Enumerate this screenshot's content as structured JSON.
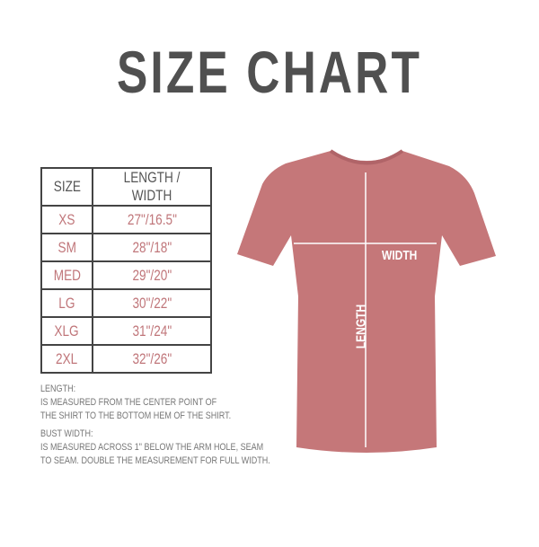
{
  "title": "SIZE CHART",
  "table": {
    "headers": [
      "SIZE",
      "LENGTH / WIDTH"
    ],
    "rows": [
      {
        "size": "XS",
        "measure": "27\"/16.5\""
      },
      {
        "size": "SM",
        "measure": "28\"/18\""
      },
      {
        "size": "MED",
        "measure": "29\"/20\""
      },
      {
        "size": "LG",
        "measure": "30\"/22\""
      },
      {
        "size": "XLG",
        "measure": "31\"/24\""
      },
      {
        "size": "2XL",
        "measure": "32\"/26\""
      }
    ]
  },
  "notes": {
    "length_heading": "LENGTH:",
    "length_line1": "IS MEASURED FROM THE CENTER POINT OF",
    "length_line2": "THE SHIRT TO THE BOTTOM HEM OF THE SHIRT.",
    "width_heading": "BUST WIDTH:",
    "width_line1": "IS MEASURED ACROSS  1\" BELOW THE ARM HOLE, SEAM",
    "width_line2": "TO SEAM. DOUBLE THE MEASUREMENT FOR FULL WIDTH."
  },
  "shirt": {
    "color": "#c57779",
    "width_label": "WIDTH",
    "length_label": "LENGTH"
  }
}
